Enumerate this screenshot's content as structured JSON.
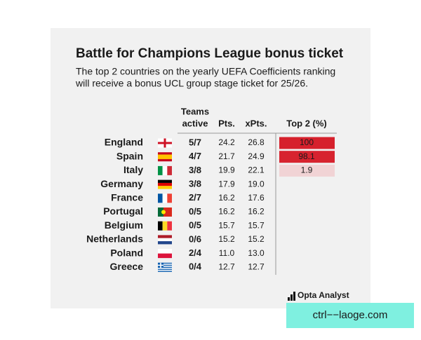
{
  "header": {
    "title": "Battle for Champions League bonus ticket",
    "subtitle": [
      "The top 2 countries on the yearly UEFA Coefficients ranking",
      "will receive a bonus UCL group stage ticket for 25/26."
    ]
  },
  "table": {
    "columns": {
      "teams": [
        "Teams",
        "active"
      ],
      "pts": "Pts.",
      "xpts": "xPts.",
      "top2": "Top 2 (%)"
    },
    "rows": [
      {
        "country": "England",
        "teams": "5/7",
        "pts": "24.2",
        "xpts": "26.8",
        "top2": 100
      },
      {
        "country": "Spain",
        "teams": "4/7",
        "pts": "21.7",
        "xpts": "24.9",
        "top2": 98.1
      },
      {
        "country": "Italy",
        "teams": "3/8",
        "pts": "19.9",
        "xpts": "22.1",
        "top2": 1.9
      },
      {
        "country": "Germany",
        "teams": "3/8",
        "pts": "17.9",
        "xpts": "19.0"
      },
      {
        "country": "France",
        "teams": "2/7",
        "pts": "16.2",
        "xpts": "17.6"
      },
      {
        "country": "Portugal",
        "teams": "0/5",
        "pts": "16.2",
        "xpts": "16.2"
      },
      {
        "country": "Belgium",
        "teams": "0/5",
        "pts": "15.7",
        "xpts": "15.7"
      },
      {
        "country": "Netherlands",
        "teams": "0/6",
        "pts": "15.2",
        "xpts": "15.2"
      },
      {
        "country": "Poland",
        "teams": "2/4",
        "pts": "11.0",
        "xpts": "13.0"
      },
      {
        "country": "Greece",
        "teams": "0/4",
        "pts": "12.7",
        "xpts": "12.7"
      }
    ]
  },
  "footer": {
    "logo": "Opta Analyst"
  },
  "watermark": "ctrl−−laoge.com"
}
